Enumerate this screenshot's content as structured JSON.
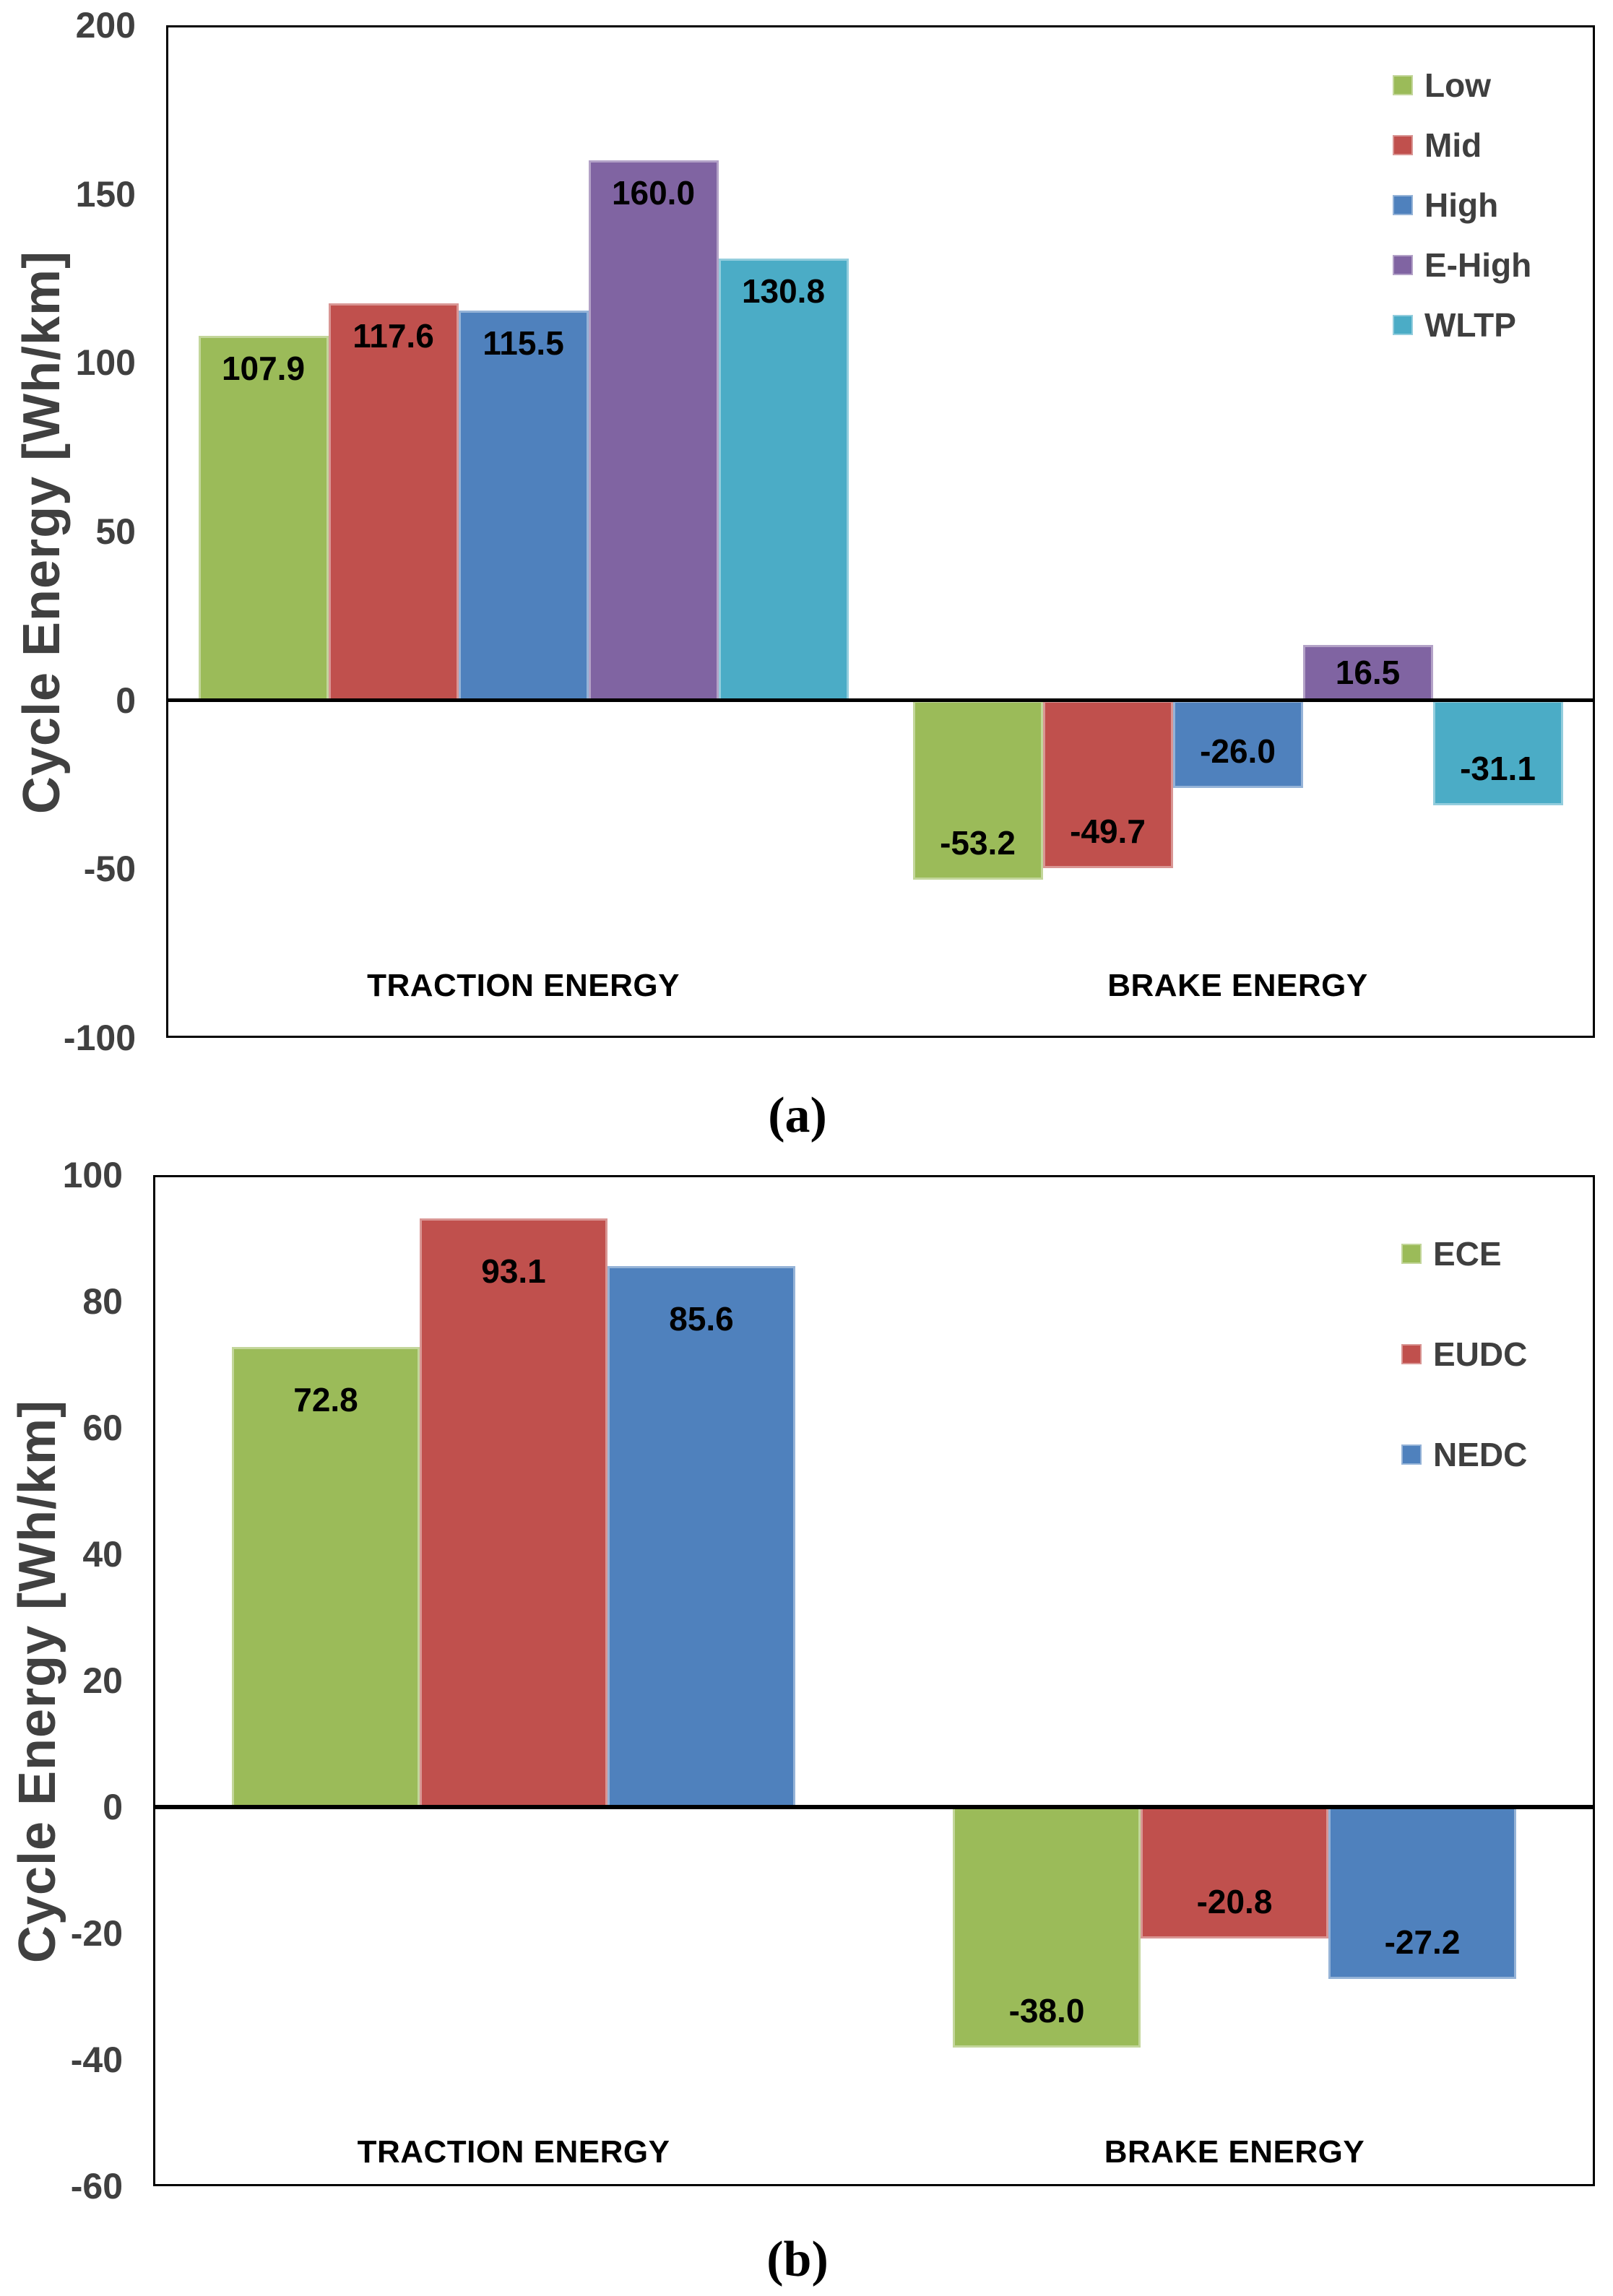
{
  "chart_data": [
    {
      "type": "bar",
      "caption": "(a)",
      "ylabel": "Cycle Energy [Wh/km]",
      "ylim": [
        -100,
        200
      ],
      "y_ticks": [
        200,
        150,
        100,
        50,
        0,
        -50,
        -100
      ],
      "categories": [
        "TRACTION ENERGY",
        "BRAKE ENERGY"
      ],
      "legend_position": "top-right",
      "grid": false,
      "series": [
        {
          "name": "Low",
          "color": "#9BBB59",
          "border_color": "#C3D69B",
          "values": [
            107.9,
            -53.2
          ],
          "labels": [
            "107.9",
            "-53.2"
          ]
        },
        {
          "name": "Mid",
          "color": "#C0504D",
          "border_color": "#D99694",
          "values": [
            117.6,
            -49.7
          ],
          "labels": [
            "117.6",
            "-49.7"
          ]
        },
        {
          "name": "High",
          "color": "#4F81BD",
          "border_color": "#95B3D7",
          "values": [
            115.5,
            -26.0
          ],
          "labels": [
            "115.5",
            "-26.0"
          ]
        },
        {
          "name": "E-High",
          "color": "#8064A2",
          "border_color": "#B3A2C7",
          "values": [
            160.0,
            16.5
          ],
          "labels": [
            "160.0",
            "16.5"
          ]
        },
        {
          "name": "WLTP",
          "color": "#4BACC6",
          "border_color": "#93CDDD",
          "values": [
            130.8,
            -31.1
          ],
          "labels": [
            "130.8",
            "-31.1"
          ]
        }
      ]
    },
    {
      "type": "bar",
      "caption": "(b)",
      "ylabel": "Cycle Energy [Wh/km]",
      "ylim": [
        -60,
        100
      ],
      "y_ticks": [
        100,
        80,
        60,
        40,
        20,
        0,
        -20,
        -40,
        -60
      ],
      "categories": [
        "TRACTION ENERGY",
        "BRAKE ENERGY"
      ],
      "legend_position": "top-right",
      "grid": false,
      "series": [
        {
          "name": "ECE",
          "color": "#9BBB59",
          "border_color": "#C3D69B",
          "values": [
            72.8,
            -38.0
          ],
          "labels": [
            "72.8",
            "-38.0"
          ]
        },
        {
          "name": "EUDC",
          "color": "#C0504D",
          "border_color": "#D99694",
          "values": [
            93.1,
            -20.8
          ],
          "labels": [
            "93.1",
            "-20.8"
          ]
        },
        {
          "name": "NEDC",
          "color": "#4F81BD",
          "border_color": "#95B3D7",
          "values": [
            85.6,
            -27.2
          ],
          "labels": [
            "85.6",
            "-27.2"
          ]
        }
      ]
    }
  ],
  "colors": {
    "axis": "#000000",
    "tick_text": "#404040",
    "value_text": "#000000"
  }
}
